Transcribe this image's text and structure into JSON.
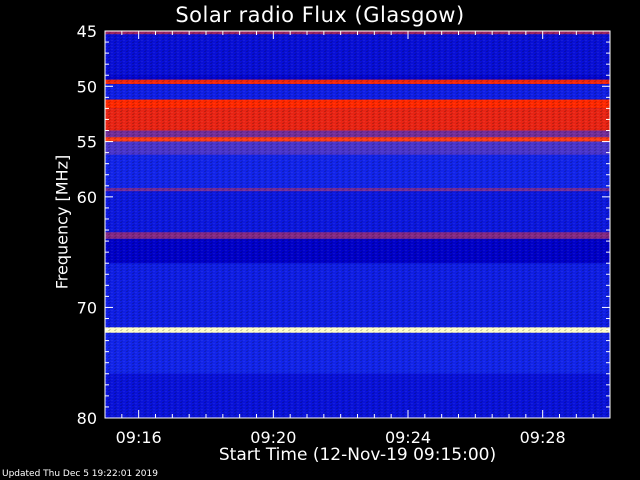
{
  "chart_data": {
    "type": "heatmap",
    "title": "Solar radio Flux (Glasgow)",
    "xlabel": "Start Time (12-Nov-19 09:15:00)",
    "ylabel": "Frequency [MHz]",
    "x_ticks": [
      "09:16",
      "09:20",
      "09:24",
      "09:28"
    ],
    "x_tick_minutes": [
      1,
      5,
      9,
      13
    ],
    "xlim_minutes": [
      0,
      15
    ],
    "y_ticks": [
      45,
      50,
      55,
      60,
      70,
      80
    ],
    "ylim_mhz": [
      45,
      80
    ],
    "colormap": [
      "#000000",
      "#0000c8",
      "#1e3cff",
      "#c81e32",
      "#ff2800",
      "#ffffc8"
    ],
    "bands": [
      {
        "from_mhz": 45.0,
        "to_mhz": 45.3,
        "level": 0.55
      },
      {
        "from_mhz": 45.3,
        "to_mhz": 49.0,
        "level": 0.25
      },
      {
        "from_mhz": 49.4,
        "to_mhz": 49.8,
        "level": 0.75
      },
      {
        "from_mhz": 49.8,
        "to_mhz": 51.2,
        "level": 0.3
      },
      {
        "from_mhz": 51.2,
        "to_mhz": 52.0,
        "level": 0.8
      },
      {
        "from_mhz": 52.0,
        "to_mhz": 54.0,
        "level": 0.72
      },
      {
        "from_mhz": 54.0,
        "to_mhz": 54.6,
        "level": 0.5
      },
      {
        "from_mhz": 54.6,
        "to_mhz": 55.0,
        "level": 0.82
      },
      {
        "from_mhz": 55.0,
        "to_mhz": 56.2,
        "level": 0.45
      },
      {
        "from_mhz": 56.2,
        "to_mhz": 59.2,
        "level": 0.32
      },
      {
        "from_mhz": 59.2,
        "to_mhz": 59.5,
        "level": 0.5
      },
      {
        "from_mhz": 59.5,
        "to_mhz": 63.2,
        "level": 0.28
      },
      {
        "from_mhz": 63.2,
        "to_mhz": 63.8,
        "level": 0.52
      },
      {
        "from_mhz": 63.8,
        "to_mhz": 66.0,
        "level": 0.2
      },
      {
        "from_mhz": 66.0,
        "to_mhz": 71.8,
        "level": 0.3
      },
      {
        "from_mhz": 71.8,
        "to_mhz": 72.3,
        "level": 1.0
      },
      {
        "from_mhz": 72.3,
        "to_mhz": 76.0,
        "level": 0.32
      },
      {
        "from_mhz": 76.0,
        "to_mhz": 80.0,
        "level": 0.26
      }
    ]
  },
  "footer": "Updated Thu Dec  5 19:22:01 2019"
}
